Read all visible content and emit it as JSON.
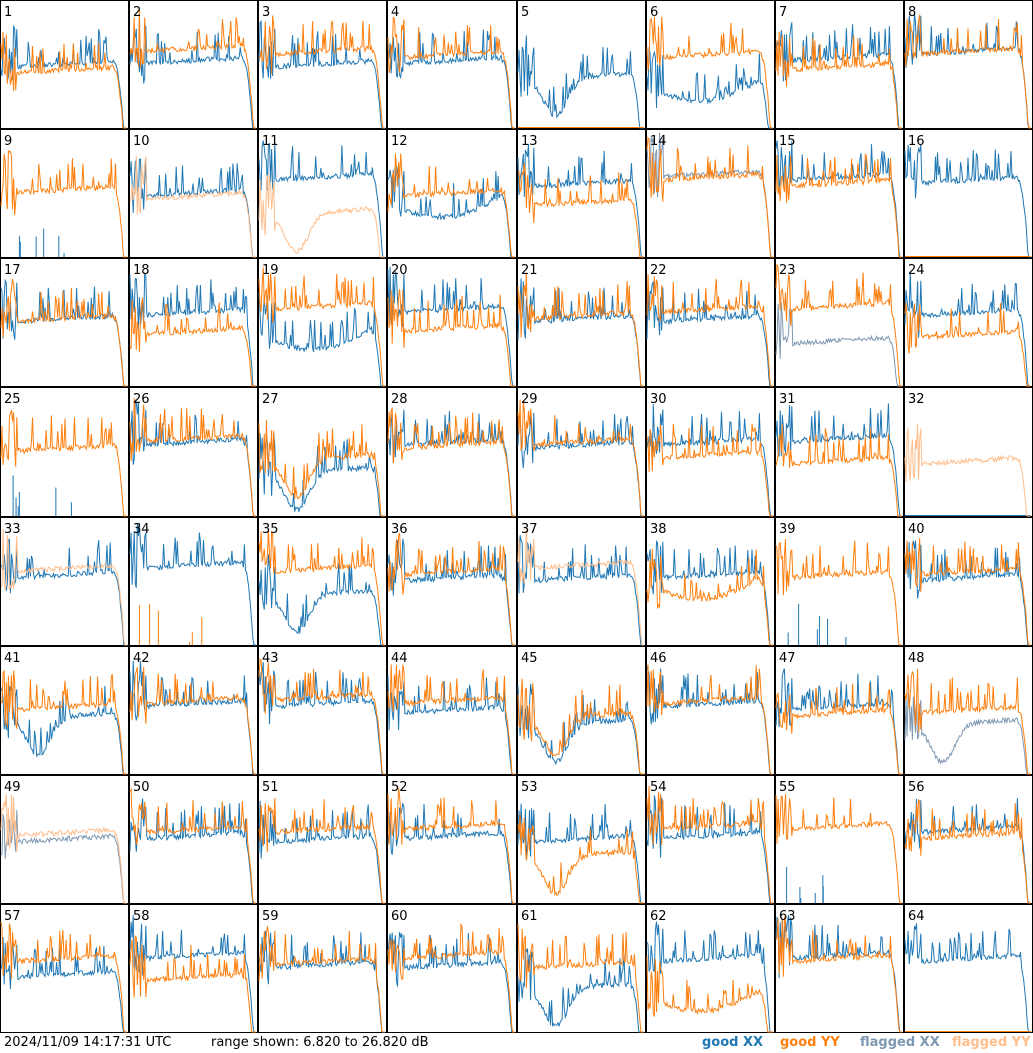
{
  "footer": {
    "timestamp": "2024/11/09 14:17:31 UTC",
    "range_text": "range shown: 6.820 to 26.820 dB"
  },
  "legend": [
    {
      "label": "good XX",
      "color": "#1f77b4"
    },
    {
      "label": "good YY",
      "color": "#ff7f0e"
    },
    {
      "label": "flagged XX",
      "color": "#7f98b2"
    },
    {
      "label": "flagged YY",
      "color": "#ffbe8c"
    }
  ],
  "chart_data": {
    "type": "line",
    "title": "",
    "units": "dB",
    "ylim": [
      6.82,
      26.82
    ],
    "x_range": [
      0,
      1
    ],
    "grid": false,
    "legend_placement": "bottom-right",
    "layout": "8x8 small multiples",
    "colors": {
      "good_xx": "#1f77b4",
      "good_yy": "#ff7f0e",
      "flagged_xx": "#7f98b2",
      "flagged_yy": "#ffbe8c"
    },
    "panels": [
      {
        "n": 1,
        "xx": "good",
        "yy": "good",
        "xx_level": 17.0,
        "yy_level": 16.0,
        "xx_shape": "flat",
        "yy_shape": "flat"
      },
      {
        "n": 2,
        "xx": "good",
        "yy": "good",
        "xx_level": 17.5,
        "yy_level": 19.5
      },
      {
        "n": 3,
        "xx": "good",
        "yy": "good",
        "xx_level": 17.0,
        "yy_level": 19.0
      },
      {
        "n": 4,
        "xx": "good",
        "yy": "good",
        "xx_level": 17.5,
        "yy_level": 18.5
      },
      {
        "n": 5,
        "xx": "good",
        "yy": "flat_low",
        "xx_level": 15.0,
        "xx_shape": "dip"
      },
      {
        "n": 6,
        "xx": "good",
        "yy": "good",
        "xx_level": 14.0,
        "yy_level": 18.5,
        "xx_shape": "hump"
      },
      {
        "n": 7,
        "xx": "good",
        "yy": "good",
        "xx_level": 18.0,
        "yy_level": 16.5
      },
      {
        "n": 8,
        "xx": "good",
        "yy": "good",
        "xx_level": 19.0,
        "yy_level": 19.0
      },
      {
        "n": 9,
        "xx": "spikes",
        "yy": "good",
        "yy_level": 17.5
      },
      {
        "n": 10,
        "xx": "good",
        "yy": "flagged",
        "xx_level": 17.0,
        "yy_level": 16.5
      },
      {
        "n": 11,
        "xx": "good",
        "yy": "flagged",
        "xx_level": 19.5,
        "yy_level": 14.0,
        "yy_shape": "dip"
      },
      {
        "n": 12,
        "xx": "good",
        "yy": "good",
        "xx_level": 16.0,
        "yy_level": 17.0,
        "xx_shape": "hump"
      },
      {
        "n": 13,
        "xx": "good",
        "yy": "good",
        "xx_level": 18.5,
        "yy_level": 15.5
      },
      {
        "n": 14,
        "xx": "flagged",
        "yy": "good",
        "xx_level": 20.0,
        "yy_level": 19.5
      },
      {
        "n": 15,
        "xx": "good",
        "yy": "good",
        "xx_level": 19.5,
        "yy_level": 18.5
      },
      {
        "n": 16,
        "xx": "good",
        "yy": "flat_low",
        "xx_level": 19.0
      },
      {
        "n": 17,
        "xx": "good",
        "yy": "good",
        "xx_level": 17.5,
        "yy_level": 17.5
      },
      {
        "n": 18,
        "xx": "good",
        "yy": "good",
        "xx_level": 18.5,
        "yy_level": 15.5
      },
      {
        "n": 19,
        "xx": "good",
        "yy": "good",
        "xx_level": 15.5,
        "yy_level": 19.5,
        "xx_shape": "hump"
      },
      {
        "n": 20,
        "xx": "good",
        "yy": "good",
        "xx_level": 19.0,
        "yy_level": 16.0
      },
      {
        "n": 21,
        "xx": "good",
        "yy": "good",
        "xx_level": 17.5,
        "yy_level": 18.0
      },
      {
        "n": 22,
        "xx": "good",
        "yy": "good",
        "xx_level": 17.5,
        "yy_level": 19.0
      },
      {
        "n": 23,
        "xx": "flagged",
        "yy": "good",
        "xx_level": 14.0,
        "yy_level": 19.5
      },
      {
        "n": 24,
        "xx": "good",
        "yy": "good",
        "xx_level": 18.5,
        "yy_level": 15.0
      },
      {
        "n": 25,
        "xx": "spikes",
        "yy": "good",
        "yy_level": 17.5
      },
      {
        "n": 26,
        "xx": "good",
        "yy": "good",
        "xx_level": 18.5,
        "yy_level": 19.0
      },
      {
        "n": 27,
        "xx": "good",
        "yy": "good",
        "xx_level": 14.0,
        "yy_level": 16.0,
        "xx_shape": "dip",
        "yy_shape": "dip"
      },
      {
        "n": 28,
        "xx": "good",
        "yy": "good",
        "xx_level": 18.5,
        "yy_level": 18.0
      },
      {
        "n": 29,
        "xx": "good",
        "yy": "good",
        "xx_level": 18.0,
        "yy_level": 18.5
      },
      {
        "n": 30,
        "xx": "good",
        "yy": "good",
        "xx_level": 18.5,
        "yy_level": 16.5
      },
      {
        "n": 31,
        "xx": "good",
        "yy": "good",
        "xx_level": 19.0,
        "yy_level": 15.5
      },
      {
        "n": 32,
        "xx": "flat_low",
        "yy": "flagged",
        "yy_level": 15.5
      },
      {
        "n": 33,
        "xx": "good",
        "yy": "flagged",
        "xx_level": 18.0,
        "yy_level": 19.0
      },
      {
        "n": 34,
        "xx": "good",
        "yy": "spikes",
        "xx_level": 19.5
      },
      {
        "n": 35,
        "xx": "good",
        "yy": "good",
        "xx_level": 15.0,
        "yy_level": 19.0,
        "xx_shape": "dip"
      },
      {
        "n": 36,
        "xx": "good",
        "yy": "good",
        "xx_level": 17.5,
        "yy_level": 18.5
      },
      {
        "n": 37,
        "xx": "good",
        "yy": "flagged",
        "xx_level": 17.5,
        "yy_level": 19.5
      },
      {
        "n": 38,
        "xx": "good",
        "yy": "good",
        "xx_level": 18.0,
        "yy_level": 17.0,
        "yy_shape": "hump"
      },
      {
        "n": 39,
        "xx": "spikes",
        "yy": "good",
        "yy_level": 18.0
      },
      {
        "n": 40,
        "xx": "good",
        "yy": "good",
        "xx_level": 17.5,
        "yy_level": 18.5
      },
      {
        "n": 41,
        "xx": "good",
        "yy": "good",
        "xx_level": 16.0,
        "yy_level": 17.5,
        "xx_shape": "dip"
      },
      {
        "n": 42,
        "xx": "good",
        "yy": "good",
        "xx_level": 18.0,
        "yy_level": 18.5
      },
      {
        "n": 43,
        "xx": "good",
        "yy": "good",
        "xx_level": 18.0,
        "yy_level": 19.0
      },
      {
        "n": 44,
        "xx": "good",
        "yy": "good",
        "xx_level": 17.0,
        "yy_level": 18.5
      },
      {
        "n": 45,
        "xx": "good",
        "yy": "good",
        "xx_level": 15.0,
        "yy_level": 16.0,
        "xx_shape": "dip",
        "yy_shape": "dip"
      },
      {
        "n": 46,
        "xx": "good",
        "yy": "good",
        "xx_level": 18.0,
        "yy_level": 18.5
      },
      {
        "n": 47,
        "xx": "good",
        "yy": "good",
        "xx_level": 17.5,
        "yy_level": 16.5
      },
      {
        "n": 48,
        "xx": "flagged",
        "yy": "good",
        "xx_level": 15.0,
        "yy_level": 17.0,
        "xx_shape": "dip"
      },
      {
        "n": 49,
        "xx": "flagged",
        "yy": "flagged",
        "xx_level": 17.0,
        "yy_level": 18.0
      },
      {
        "n": 50,
        "xx": "good",
        "yy": "good",
        "xx_level": 17.5,
        "yy_level": 18.5
      },
      {
        "n": 51,
        "xx": "good",
        "yy": "good",
        "xx_level": 17.0,
        "yy_level": 18.5
      },
      {
        "n": 52,
        "xx": "good",
        "yy": "good",
        "xx_level": 17.5,
        "yy_level": 19.0
      },
      {
        "n": 53,
        "xx": "good",
        "yy": "good",
        "xx_level": 17.0,
        "yy_level": 14.5,
        "yy_shape": "dip"
      },
      {
        "n": 54,
        "xx": "good",
        "yy": "good",
        "xx_level": 17.5,
        "yy_level": 19.0
      },
      {
        "n": 55,
        "xx": "spikes",
        "yy": "good",
        "yy_level": 19.0
      },
      {
        "n": 56,
        "xx": "good",
        "yy": "good",
        "xx_level": 18.5,
        "yy_level": 17.5
      },
      {
        "n": 57,
        "xx": "good",
        "yy": "good",
        "xx_level": 16.0,
        "yy_level": 18.5
      },
      {
        "n": 58,
        "xx": "good",
        "yy": "good",
        "xx_level": 19.0,
        "yy_level": 15.5
      },
      {
        "n": 59,
        "xx": "good",
        "yy": "good",
        "xx_level": 17.5,
        "yy_level": 18.0
      },
      {
        "n": 60,
        "xx": "good",
        "yy": "good",
        "xx_level": 17.5,
        "yy_level": 19.0
      },
      {
        "n": 61,
        "xx": "good",
        "yy": "good",
        "xx_level": 14.0,
        "yy_level": 17.5,
        "xx_shape": "dip"
      },
      {
        "n": 62,
        "xx": "good",
        "yy": "good",
        "xx_level": 18.5,
        "yy_level": 13.0,
        "yy_shape": "hump"
      },
      {
        "n": 63,
        "xx": "good",
        "yy": "good",
        "xx_level": 19.0,
        "yy_level": 18.5
      },
      {
        "n": 64,
        "xx": "good",
        "yy": "flat_low",
        "xx_level": 18.5
      }
    ]
  }
}
